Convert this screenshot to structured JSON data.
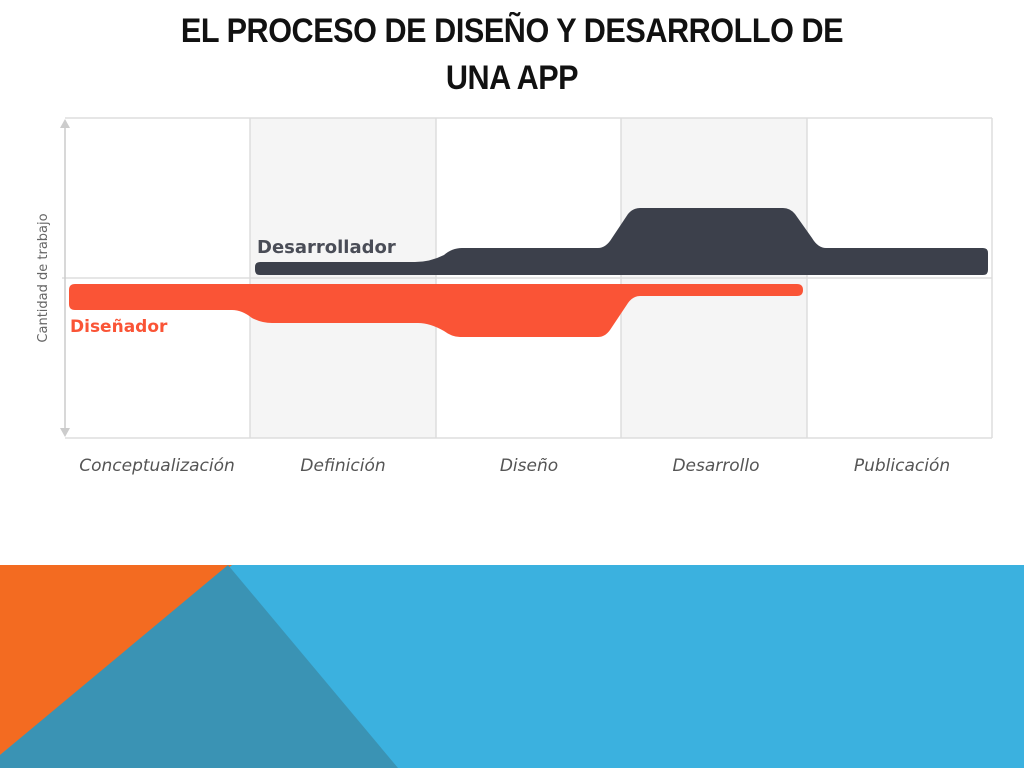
{
  "slide": {
    "title_line1": "EL PROCESO DE DISEÑO Y DESARROLLO DE",
    "title_line2": "UNA APP"
  },
  "diagram": {
    "y_axis_label": "Cantidad de trabajo",
    "phases": [
      "Conceptualización",
      "Definición",
      "Diseño",
      "Desarrollo",
      "Publicación"
    ],
    "roles": {
      "developer": {
        "label": "Desarrollador",
        "color": "#3c404b"
      },
      "designer": {
        "label": "Diseñador",
        "color": "#fa5436"
      }
    },
    "colors": {
      "shaded_column": "#f5f5f5",
      "grid_line": "#dddddd",
      "phase_label": "#555555",
      "axis_label": "#666666"
    }
  },
  "footer": {
    "colors": {
      "orange": "#f36b21",
      "teal": "#3a93b4",
      "blue": "#3bb1df"
    }
  }
}
